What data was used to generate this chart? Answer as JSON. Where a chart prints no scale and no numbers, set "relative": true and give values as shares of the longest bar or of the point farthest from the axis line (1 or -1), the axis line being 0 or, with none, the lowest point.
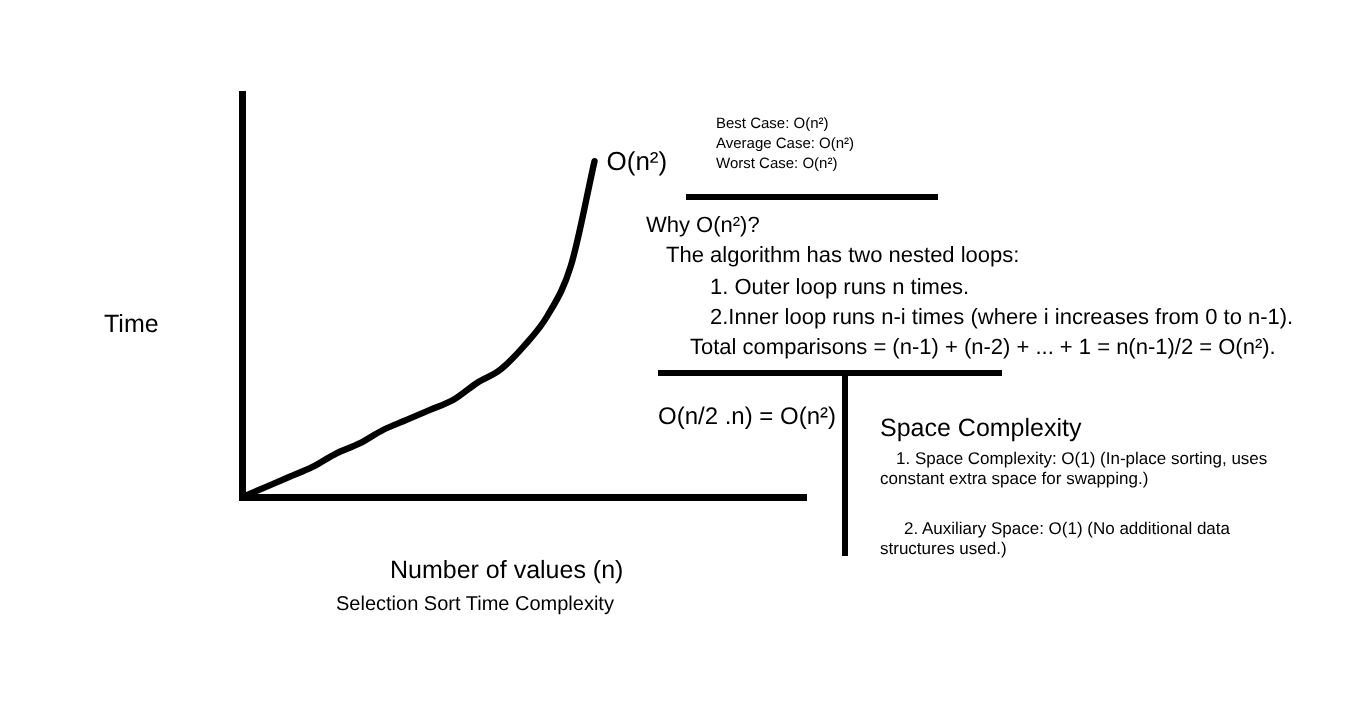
{
  "chart_data": {
    "type": "line",
    "title": "Selection Sort Time Complexity",
    "xlabel": "Number of values (n)",
    "ylabel": "Time",
    "relative": true,
    "legend": false,
    "grid": false,
    "marker": "none",
    "line_style": "solid",
    "categories": [
      null,
      null,
      null,
      null,
      null,
      null,
      null,
      null,
      null,
      null,
      null,
      null,
      null,
      null,
      null,
      null,
      null,
      null,
      null,
      null,
      null,
      null,
      null,
      null,
      null
    ],
    "series": [
      {
        "name": "O(n²)",
        "color": "#000000",
        "values": [
          0,
          0.03,
          0.06,
          0.09,
          0.13,
          0.16,
          0.2,
          0.23,
          0.26,
          0.29,
          0.34,
          0.38,
          0.45,
          0.54,
          0.69,
          1,
          null,
          null,
          null,
          null,
          null,
          null,
          null,
          null,
          null
        ]
      }
    ],
    "annotations": [
      "Best Case: O(n²)",
      "Average Case: O(n²)",
      "Worst Case: O(n²)",
      "Why O(n²)?",
      "The algorithm has two nested loops:",
      "1. Outer loop runs n times.",
      "2.Inner loop runs n-i times (where i increases from 0 to n-1).",
      "Total comparisons = (n-1) + (n-2) + ... + 1 = n(n-1)/2 = O(n²).",
      "O(n/2 .n) =  O(n²)",
      "Space Complexity",
      "1. Space Complexity: O(1) (In-place   sorting, uses constant extra space for swapping.)",
      "2. Auxiliary Space: O(1) (No additional data structures used.)"
    ]
  }
}
